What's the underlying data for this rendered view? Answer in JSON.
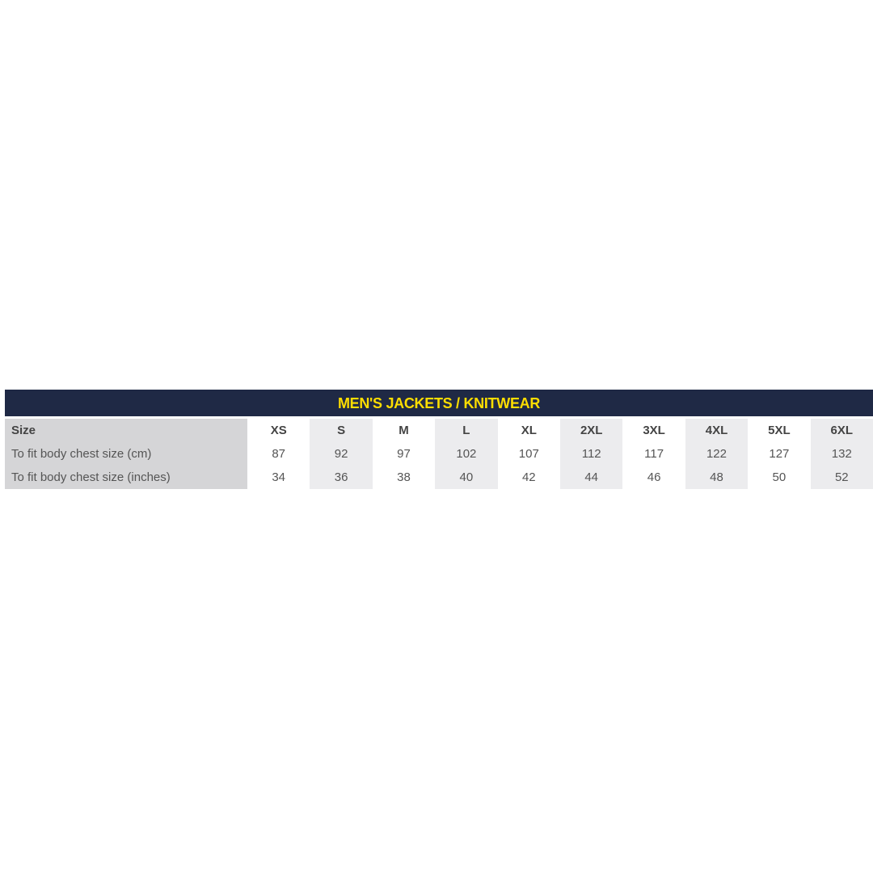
{
  "title": "MEN'S JACKETS / KNITWEAR",
  "colors": {
    "header_bg": "#1f2945",
    "header_text": "#ffde00",
    "label_bg": "#d5d5d7",
    "shaded_col": "#ececee"
  },
  "rows": [
    {
      "label": "Size",
      "values": [
        "XS",
        "S",
        "M",
        "L",
        "XL",
        "2XL",
        "3XL",
        "4XL",
        "5XL",
        "6XL"
      ]
    },
    {
      "label": "To fit body chest size (cm)",
      "values": [
        "87",
        "92",
        "97",
        "102",
        "107",
        "112",
        "117",
        "122",
        "127",
        "132"
      ]
    },
    {
      "label": "To fit body chest size (inches)",
      "values": [
        "34",
        "36",
        "38",
        "40",
        "42",
        "44",
        "46",
        "48",
        "50",
        "52"
      ]
    }
  ]
}
